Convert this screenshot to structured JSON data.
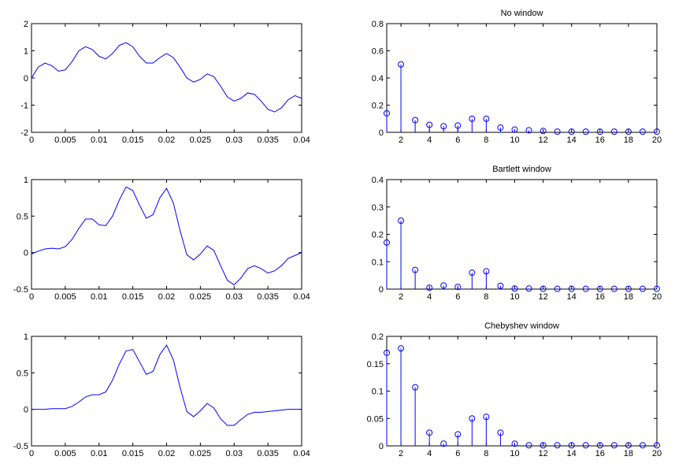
{
  "line_color": "#0000ff",
  "axis_color": "#000000",
  "chart_data": [
    {
      "type": "line",
      "title": "",
      "xlim": [
        0,
        0.04
      ],
      "ylim": [
        -2,
        2
      ],
      "xticks": [
        0,
        0.005,
        0.01,
        0.015,
        0.02,
        0.025,
        0.03,
        0.035,
        0.04
      ],
      "xtick_labels": [
        "0",
        "0.005",
        "0.01",
        "0.015",
        "0.02",
        "0.025",
        "0.03",
        "0.035",
        "0.04"
      ],
      "yticks": [
        -2,
        -1,
        0,
        1,
        2
      ],
      "ytick_labels": [
        "-2",
        "-1",
        "0",
        "1",
        "2"
      ],
      "x": [
        0,
        0.001,
        0.002,
        0.003,
        0.004,
        0.005,
        0.006,
        0.007,
        0.008,
        0.009,
        0.01,
        0.011,
        0.012,
        0.013,
        0.014,
        0.015,
        0.016,
        0.017,
        0.018,
        0.019,
        0.02,
        0.021,
        0.022,
        0.023,
        0.024,
        0.025,
        0.026,
        0.027,
        0.028,
        0.029,
        0.03,
        0.031,
        0.032,
        0.033,
        0.034,
        0.035,
        0.036,
        0.037,
        0.038,
        0.039,
        0.04
      ],
      "y": [
        0,
        0.4,
        0.55,
        0.45,
        0.25,
        0.3,
        0.6,
        1.0,
        1.15,
        1.05,
        0.8,
        0.7,
        0.9,
        1.2,
        1.3,
        1.15,
        0.8,
        0.55,
        0.55,
        0.75,
        0.9,
        0.75,
        0.4,
        0.0,
        -0.15,
        -0.05,
        0.15,
        0.05,
        -0.3,
        -0.7,
        -0.85,
        -0.75,
        -0.55,
        -0.6,
        -0.85,
        -1.15,
        -1.25,
        -1.1,
        -0.8,
        -0.65,
        -0.75
      ]
    },
    {
      "type": "stem",
      "title": "No window",
      "xlim": [
        1,
        20
      ],
      "ylim": [
        0,
        0.8
      ],
      "xticks": [
        2,
        4,
        6,
        8,
        10,
        12,
        14,
        16,
        18,
        20
      ],
      "xtick_labels": [
        "2",
        "4",
        "6",
        "8",
        "10",
        "12",
        "14",
        "16",
        "18",
        "20"
      ],
      "yticks": [
        0,
        0.2,
        0.4,
        0.6,
        0.8
      ],
      "ytick_labels": [
        "0",
        "0.2",
        "0.4",
        "0.6",
        "0.8"
      ],
      "x": [
        1,
        2,
        3,
        4,
        5,
        6,
        7,
        8,
        9,
        10,
        11,
        12,
        13,
        14,
        15,
        16,
        17,
        18,
        19,
        20
      ],
      "y": [
        0.14,
        0.5,
        0.09,
        0.055,
        0.045,
        0.05,
        0.1,
        0.1,
        0.035,
        0.02,
        0.015,
        0.01,
        0.005,
        0.005,
        0.005,
        0.005,
        0.005,
        0.005,
        0.005,
        0.005
      ]
    },
    {
      "type": "line",
      "title": "",
      "xlim": [
        0,
        0.04
      ],
      "ylim": [
        -0.5,
        1
      ],
      "xticks": [
        0,
        0.005,
        0.01,
        0.015,
        0.02,
        0.025,
        0.03,
        0.035,
        0.04
      ],
      "xtick_labels": [
        "0",
        "0.005",
        "0.01",
        "0.015",
        "0.02",
        "0.025",
        "0.03",
        "0.035",
        "0.04"
      ],
      "yticks": [
        -0.5,
        0,
        0.5,
        1
      ],
      "ytick_labels": [
        "-0.5",
        "0",
        "0.5",
        "1"
      ],
      "x": [
        0,
        0.001,
        0.002,
        0.003,
        0.004,
        0.005,
        0.006,
        0.007,
        0.008,
        0.009,
        0.01,
        0.011,
        0.012,
        0.013,
        0.014,
        0.015,
        0.016,
        0.017,
        0.018,
        0.019,
        0.02,
        0.021,
        0.022,
        0.023,
        0.024,
        0.025,
        0.026,
        0.027,
        0.028,
        0.029,
        0.03,
        0.031,
        0.032,
        0.033,
        0.034,
        0.035,
        0.036,
        0.037,
        0.038,
        0.039,
        0.04
      ],
      "y": [
        -0.02,
        0.02,
        0.05,
        0.06,
        0.05,
        0.08,
        0.18,
        0.33,
        0.46,
        0.46,
        0.38,
        0.37,
        0.5,
        0.72,
        0.9,
        0.85,
        0.65,
        0.47,
        0.52,
        0.75,
        0.88,
        0.68,
        0.3,
        -0.03,
        -0.1,
        -0.02,
        0.09,
        0.03,
        -0.18,
        -0.38,
        -0.44,
        -0.35,
        -0.22,
        -0.18,
        -0.22,
        -0.28,
        -0.25,
        -0.18,
        -0.08,
        -0.04,
        0.0
      ]
    },
    {
      "type": "stem",
      "title": "Bartlett window",
      "xlim": [
        1,
        20
      ],
      "ylim": [
        0,
        0.4
      ],
      "xticks": [
        2,
        4,
        6,
        8,
        10,
        12,
        14,
        16,
        18,
        20
      ],
      "xtick_labels": [
        "2",
        "4",
        "6",
        "8",
        "10",
        "12",
        "14",
        "16",
        "18",
        "20"
      ],
      "yticks": [
        0,
        0.1,
        0.2,
        0.3,
        0.4
      ],
      "ytick_labels": [
        "0",
        "0.1",
        "0.2",
        "0.3",
        "0.4"
      ],
      "x": [
        1,
        2,
        3,
        4,
        5,
        6,
        7,
        8,
        9,
        10,
        11,
        12,
        13,
        14,
        15,
        16,
        17,
        18,
        19,
        20
      ],
      "y": [
        0.17,
        0.25,
        0.07,
        0.005,
        0.013,
        0.008,
        0.06,
        0.065,
        0.012,
        0.002,
        0.002,
        0.001,
        0.001,
        0.001,
        0.001,
        0.001,
        0.001,
        0.001,
        0.001,
        0.001
      ]
    },
    {
      "type": "line",
      "title": "",
      "xlim": [
        0,
        0.04
      ],
      "ylim": [
        -0.5,
        1
      ],
      "xticks": [
        0,
        0.005,
        0.01,
        0.015,
        0.02,
        0.025,
        0.03,
        0.035,
        0.04
      ],
      "xtick_labels": [
        "0",
        "0.005",
        "0.01",
        "0.015",
        "0.02",
        "0.025",
        "0.03",
        "0.035",
        "0.04"
      ],
      "yticks": [
        -0.5,
        0,
        0.5,
        1
      ],
      "ytick_labels": [
        "-0.5",
        "0",
        "0.5",
        "1"
      ],
      "x": [
        0,
        0.001,
        0.002,
        0.003,
        0.004,
        0.005,
        0.006,
        0.007,
        0.008,
        0.009,
        0.01,
        0.011,
        0.012,
        0.013,
        0.014,
        0.015,
        0.016,
        0.017,
        0.018,
        0.019,
        0.02,
        0.021,
        0.022,
        0.023,
        0.024,
        0.025,
        0.026,
        0.027,
        0.028,
        0.029,
        0.03,
        0.031,
        0.032,
        0.033,
        0.034,
        0.035,
        0.036,
        0.037,
        0.038,
        0.039,
        0.04
      ],
      "y": [
        0,
        0,
        0.0,
        0.01,
        0.01,
        0.01,
        0.04,
        0.1,
        0.17,
        0.2,
        0.2,
        0.24,
        0.4,
        0.62,
        0.8,
        0.82,
        0.65,
        0.48,
        0.52,
        0.75,
        0.88,
        0.68,
        0.3,
        -0.03,
        -0.1,
        -0.02,
        0.08,
        0.02,
        -0.13,
        -0.22,
        -0.22,
        -0.14,
        -0.07,
        -0.04,
        -0.04,
        -0.03,
        -0.02,
        -0.01,
        0.0,
        0.0,
        0.0
      ]
    },
    {
      "type": "stem",
      "title": "Chebyshev window",
      "xlim": [
        1,
        20
      ],
      "ylim": [
        0,
        0.2
      ],
      "xticks": [
        2,
        4,
        6,
        8,
        10,
        12,
        14,
        16,
        18,
        20
      ],
      "xtick_labels": [
        "2",
        "4",
        "6",
        "8",
        "10",
        "12",
        "14",
        "16",
        "18",
        "20"
      ],
      "yticks": [
        0,
        0.05,
        0.1,
        0.15,
        0.2
      ],
      "ytick_labels": [
        "0",
        "0.05",
        "0.1",
        "0.15",
        "0.2"
      ],
      "x": [
        1,
        2,
        3,
        4,
        5,
        6,
        7,
        8,
        9,
        10,
        11,
        12,
        13,
        14,
        15,
        16,
        17,
        18,
        19,
        20
      ],
      "y": [
        0.17,
        0.178,
        0.107,
        0.024,
        0.004,
        0.021,
        0.05,
        0.053,
        0.024,
        0.004,
        0.001,
        0.001,
        0.001,
        0.001,
        0.001,
        0.001,
        0.001,
        0.001,
        0.001,
        0.001
      ]
    }
  ]
}
